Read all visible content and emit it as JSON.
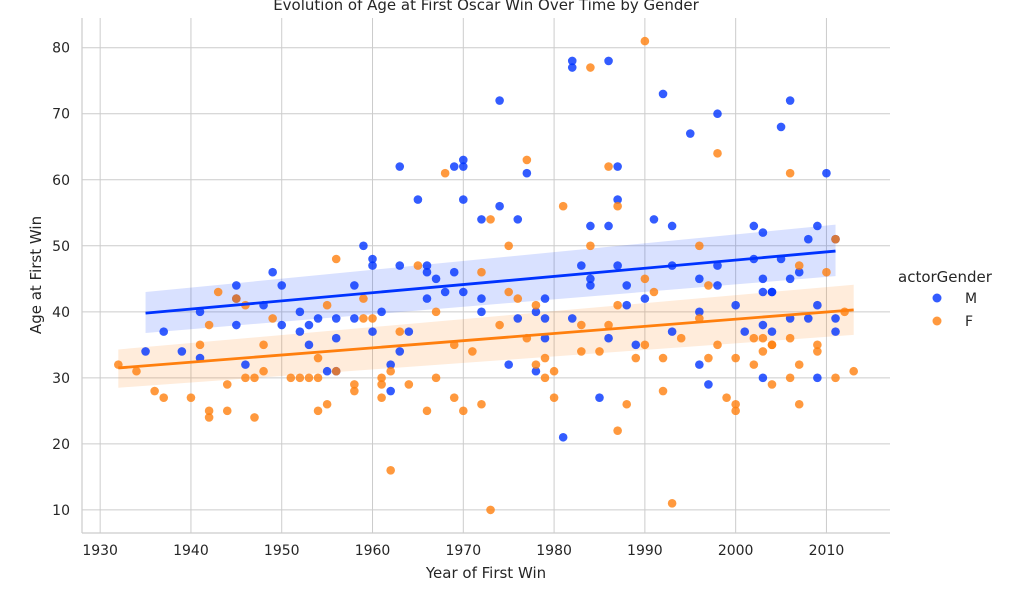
{
  "chart_data": {
    "type": "scatter",
    "title": "Evolution of Age at First Oscar Win Over Time by Gender",
    "xlabel": "Year of First Win",
    "ylabel": "Age at First Win",
    "xlim": [
      1928,
      2017
    ],
    "ylim": [
      6.5,
      84.5
    ],
    "xticks": [
      1930,
      1940,
      1950,
      1960,
      1970,
      1980,
      1990,
      2000,
      2010
    ],
    "yticks": [
      10,
      20,
      30,
      40,
      50,
      60,
      70,
      80
    ],
    "grid": true,
    "legend": {
      "title": "actorGender",
      "placement": "right"
    },
    "series": [
      {
        "name": "M",
        "color": "#0033ff",
        "trend": {
          "x": [
            1935,
            2011
          ],
          "y": [
            39.8,
            49.2
          ],
          "ci_lower": [
            36.8,
            45.4
          ],
          "ci_upper": [
            43.0,
            53.2
          ]
        },
        "points": [
          [
            1935,
            34
          ],
          [
            1937,
            37
          ],
          [
            1939,
            34
          ],
          [
            1941,
            40
          ],
          [
            1941,
            33
          ],
          [
            1945,
            44
          ],
          [
            1945,
            42
          ],
          [
            1945,
            38
          ],
          [
            1946,
            32
          ],
          [
            1948,
            41
          ],
          [
            1949,
            46
          ],
          [
            1950,
            44
          ],
          [
            1950,
            38
          ],
          [
            1952,
            40
          ],
          [
            1952,
            37
          ],
          [
            1953,
            38
          ],
          [
            1953,
            35
          ],
          [
            1954,
            39
          ],
          [
            1955,
            31
          ],
          [
            1956,
            39
          ],
          [
            1956,
            36
          ],
          [
            1956,
            31
          ],
          [
            1958,
            44
          ],
          [
            1958,
            39
          ],
          [
            1959,
            50
          ],
          [
            1960,
            48
          ],
          [
            1960,
            47
          ],
          [
            1960,
            37
          ],
          [
            1961,
            40
          ],
          [
            1962,
            28
          ],
          [
            1962,
            32
          ],
          [
            1963,
            62
          ],
          [
            1963,
            47
          ],
          [
            1963,
            34
          ],
          [
            1964,
            37
          ],
          [
            1965,
            57
          ],
          [
            1966,
            47
          ],
          [
            1966,
            46
          ],
          [
            1966,
            42
          ],
          [
            1967,
            45
          ],
          [
            1968,
            43
          ],
          [
            1969,
            62
          ],
          [
            1969,
            46
          ],
          [
            1970,
            63
          ],
          [
            1970,
            62
          ],
          [
            1970,
            57
          ],
          [
            1970,
            43
          ],
          [
            1972,
            54
          ],
          [
            1972,
            42
          ],
          [
            1972,
            40
          ],
          [
            1974,
            72
          ],
          [
            1974,
            56
          ],
          [
            1975,
            32
          ],
          [
            1976,
            54
          ],
          [
            1976,
            39
          ],
          [
            1977,
            61
          ],
          [
            1978,
            40
          ],
          [
            1978,
            31
          ],
          [
            1979,
            42
          ],
          [
            1979,
            39
          ],
          [
            1979,
            36
          ],
          [
            1981,
            21
          ],
          [
            1982,
            78
          ],
          [
            1982,
            77
          ],
          [
            1982,
            39
          ],
          [
            1983,
            47
          ],
          [
            1984,
            53
          ],
          [
            1984,
            45
          ],
          [
            1984,
            44
          ],
          [
            1985,
            27
          ],
          [
            1986,
            78
          ],
          [
            1986,
            53
          ],
          [
            1986,
            36
          ],
          [
            1987,
            62
          ],
          [
            1987,
            57
          ],
          [
            1987,
            47
          ],
          [
            1988,
            44
          ],
          [
            1988,
            41
          ],
          [
            1989,
            35
          ],
          [
            1990,
            42
          ],
          [
            1991,
            54
          ],
          [
            1992,
            73
          ],
          [
            1993,
            53
          ],
          [
            1993,
            47
          ],
          [
            1993,
            37
          ],
          [
            1995,
            67
          ],
          [
            1996,
            45
          ],
          [
            1996,
            40
          ],
          [
            1996,
            32
          ],
          [
            1997,
            29
          ],
          [
            1998,
            70
          ],
          [
            1998,
            47
          ],
          [
            1998,
            44
          ],
          [
            2000,
            41
          ],
          [
            2001,
            37
          ],
          [
            2002,
            53
          ],
          [
            2002,
            48
          ],
          [
            2003,
            52
          ],
          [
            2003,
            45
          ],
          [
            2003,
            43
          ],
          [
            2003,
            38
          ],
          [
            2003,
            30
          ],
          [
            2004,
            43
          ],
          [
            2004,
            43
          ],
          [
            2004,
            37
          ],
          [
            2005,
            68
          ],
          [
            2005,
            48
          ],
          [
            2006,
            72
          ],
          [
            2006,
            45
          ],
          [
            2006,
            39
          ],
          [
            2007,
            46
          ],
          [
            2008,
            51
          ],
          [
            2008,
            39
          ],
          [
            2009,
            53
          ],
          [
            2009,
            41
          ],
          [
            2009,
            30
          ],
          [
            2010,
            61
          ],
          [
            2011,
            51
          ],
          [
            2011,
            39
          ],
          [
            2011,
            37
          ]
        ]
      },
      {
        "name": "F",
        "color": "#ff7f0e",
        "trend": {
          "x": [
            1932,
            2013
          ],
          "y": [
            31.5,
            40.3
          ],
          "ci_lower": [
            28.5,
            36.5
          ],
          "ci_upper": [
            34.3,
            44.1
          ]
        },
        "points": [
          [
            1932,
            32
          ],
          [
            1934,
            31
          ],
          [
            1936,
            28
          ],
          [
            1937,
            27
          ],
          [
            1940,
            27
          ],
          [
            1941,
            35
          ],
          [
            1942,
            38
          ],
          [
            1942,
            25
          ],
          [
            1942,
            24
          ],
          [
            1943,
            43
          ],
          [
            1944,
            29
          ],
          [
            1944,
            25
          ],
          [
            1945,
            42
          ],
          [
            1946,
            41
          ],
          [
            1946,
            30
          ],
          [
            1947,
            30
          ],
          [
            1947,
            24
          ],
          [
            1948,
            35
          ],
          [
            1948,
            31
          ],
          [
            1949,
            39
          ],
          [
            1951,
            30
          ],
          [
            1952,
            30
          ],
          [
            1953,
            30
          ],
          [
            1954,
            33
          ],
          [
            1954,
            30
          ],
          [
            1954,
            25
          ],
          [
            1955,
            41
          ],
          [
            1955,
            26
          ],
          [
            1956,
            48
          ],
          [
            1956,
            31
          ],
          [
            1958,
            29
          ],
          [
            1958,
            28
          ],
          [
            1959,
            42
          ],
          [
            1959,
            39
          ],
          [
            1960,
            39
          ],
          [
            1961,
            30
          ],
          [
            1961,
            29
          ],
          [
            1961,
            27
          ],
          [
            1962,
            31
          ],
          [
            1962,
            16
          ],
          [
            1963,
            37
          ],
          [
            1964,
            29
          ],
          [
            1965,
            47
          ],
          [
            1966,
            25
          ],
          [
            1967,
            40
          ],
          [
            1967,
            30
          ],
          [
            1968,
            61
          ],
          [
            1969,
            35
          ],
          [
            1969,
            27
          ],
          [
            1970,
            25
          ],
          [
            1971,
            34
          ],
          [
            1972,
            46
          ],
          [
            1972,
            26
          ],
          [
            1973,
            54
          ],
          [
            1973,
            10
          ],
          [
            1974,
            38
          ],
          [
            1975,
            50
          ],
          [
            1975,
            43
          ],
          [
            1976,
            42
          ],
          [
            1977,
            63
          ],
          [
            1977,
            36
          ],
          [
            1978,
            41
          ],
          [
            1978,
            32
          ],
          [
            1979,
            33
          ],
          [
            1979,
            30
          ],
          [
            1980,
            31
          ],
          [
            1980,
            27
          ],
          [
            1981,
            56
          ],
          [
            1983,
            38
          ],
          [
            1983,
            34
          ],
          [
            1984,
            77
          ],
          [
            1984,
            50
          ],
          [
            1985,
            34
          ],
          [
            1986,
            62
          ],
          [
            1986,
            38
          ],
          [
            1987,
            56
          ],
          [
            1987,
            41
          ],
          [
            1987,
            22
          ],
          [
            1988,
            26
          ],
          [
            1989,
            33
          ],
          [
            1990,
            81
          ],
          [
            1990,
            45
          ],
          [
            1990,
            35
          ],
          [
            1991,
            43
          ],
          [
            1992,
            33
          ],
          [
            1992,
            28
          ],
          [
            1993,
            11
          ],
          [
            1994,
            36
          ],
          [
            1996,
            50
          ],
          [
            1996,
            39
          ],
          [
            1997,
            44
          ],
          [
            1997,
            33
          ],
          [
            1998,
            64
          ],
          [
            1998,
            35
          ],
          [
            1999,
            27
          ],
          [
            2000,
            33
          ],
          [
            2000,
            26
          ],
          [
            2000,
            25
          ],
          [
            2002,
            36
          ],
          [
            2002,
            32
          ],
          [
            2003,
            36
          ],
          [
            2003,
            34
          ],
          [
            2004,
            35
          ],
          [
            2004,
            35
          ],
          [
            2004,
            29
          ],
          [
            2006,
            61
          ],
          [
            2006,
            36
          ],
          [
            2006,
            30
          ],
          [
            2007,
            47
          ],
          [
            2007,
            32
          ],
          [
            2007,
            26
          ],
          [
            2009,
            35
          ],
          [
            2009,
            34
          ],
          [
            2010,
            46
          ],
          [
            2011,
            51
          ],
          [
            2011,
            30
          ],
          [
            2012,
            40
          ],
          [
            2013,
            31
          ]
        ]
      }
    ]
  }
}
